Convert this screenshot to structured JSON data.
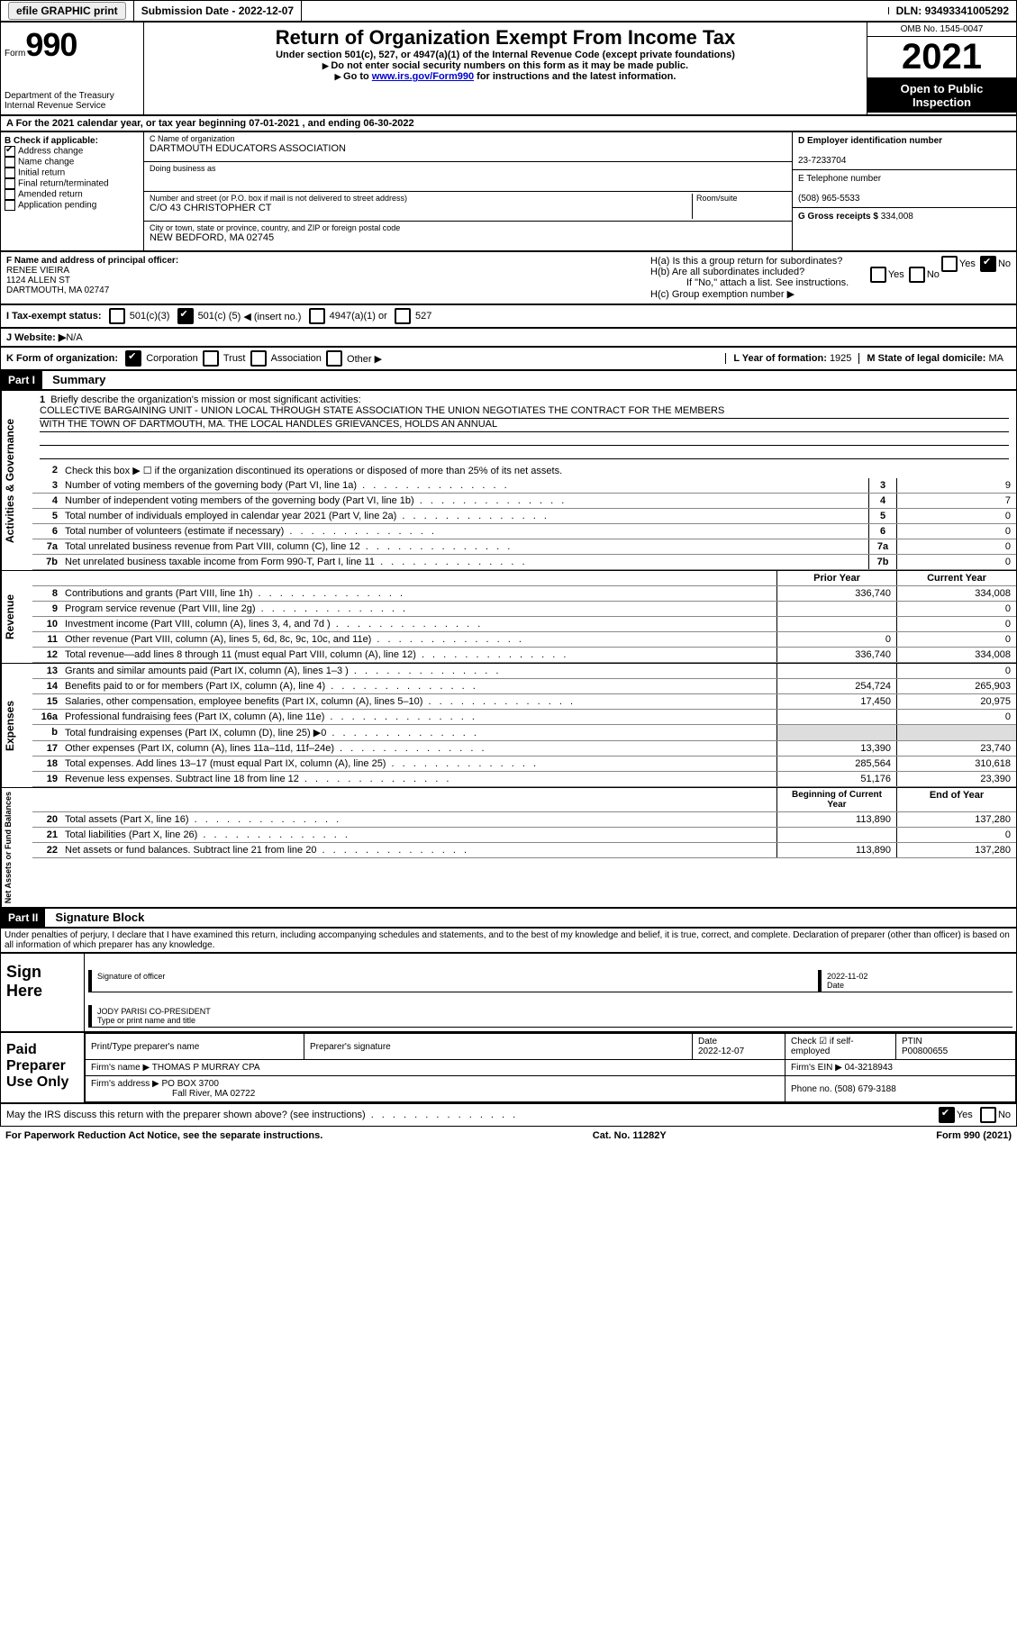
{
  "topbar": {
    "efile": "efile GRAPHIC print",
    "submission_label": "Submission Date - ",
    "submission_date": "2022-12-07",
    "dln_label": "DLN: ",
    "dln": "93493341005292"
  },
  "header": {
    "form_word": "Form",
    "form_num": "990",
    "title": "Return of Organization Exempt From Income Tax",
    "subtitle": "Under section 501(c), 527, or 4947(a)(1) of the Internal Revenue Code (except private foundations)",
    "warn": "Do not enter social security numbers on this form as it may be made public.",
    "goto_pre": "Go to ",
    "goto_link": "www.irs.gov/Form990",
    "goto_post": " for instructions and the latest information.",
    "dept": "Department of the Treasury",
    "irs": "Internal Revenue Service",
    "omb": "OMB No. 1545-0047",
    "year": "2021",
    "open": "Open to Public Inspection"
  },
  "rowA": {
    "pre": "A For the 2021 calendar year, or tax year beginning ",
    "begin": "07-01-2021",
    "mid": "  , and ending ",
    "end": "06-30-2022"
  },
  "colB": {
    "hdr": "B Check if applicable:",
    "items": [
      "Address change",
      "Name change",
      "Initial return",
      "Final return/terminated",
      "Amended return",
      "Application pending"
    ],
    "checked": [
      true,
      false,
      false,
      false,
      false,
      false
    ]
  },
  "colC": {
    "name_lbl": "C Name of organization",
    "name": "DARTMOUTH EDUCATORS ASSOCIATION",
    "dba_lbl": "Doing business as",
    "dba": "",
    "addr_lbl": "Number and street (or P.O. box if mail is not delivered to street address)",
    "room_lbl": "Room/suite",
    "addr": "C/O 43 CHRISTOPHER CT",
    "city_lbl": "City or town, state or province, country, and ZIP or foreign postal code",
    "city": "NEW BEDFORD, MA  02745"
  },
  "colD": {
    "ein_lbl": "D Employer identification number",
    "ein": "23-7233704",
    "tel_lbl": "E Telephone number",
    "tel": "(508) 965-5533",
    "gross_lbl": "G Gross receipts $ ",
    "gross": "334,008"
  },
  "colF": {
    "lbl": "F Name and address of principal officer:",
    "name": "RENEE VIEIRA",
    "addr1": "1124 ALLEN ST",
    "addr2": "DARTMOUTH, MA  02747"
  },
  "colH": {
    "ha": "H(a)  Is this a group return for subordinates?",
    "hb": "H(b)  Are all subordinates included?",
    "hb_note": "If \"No,\" attach a list. See instructions.",
    "hc": "H(c)  Group exemption number ▶",
    "yes": "Yes",
    "no": "No"
  },
  "rowI": {
    "lbl": "I  Tax-exempt status:",
    "opt1": "501(c)(3)",
    "opt2_pre": "501(c) ( ",
    "opt2_val": "5",
    "opt2_post": " ) ◀ (insert no.)",
    "opt3": "4947(a)(1) or",
    "opt4": "527"
  },
  "rowJ": {
    "lbl": "J  Website: ▶",
    "val": "  N/A"
  },
  "rowK": {
    "lbl": "K Form of organization:",
    "opts": [
      "Corporation",
      "Trust",
      "Association",
      "Other ▶"
    ],
    "year_lbl": "L Year of formation: ",
    "year": "1925",
    "state_lbl": "M State of legal domicile: ",
    "state": "MA"
  },
  "part1": {
    "hdr": "Part I",
    "title": "Summary",
    "side1": "Activities & Governance",
    "side2": "Revenue",
    "side3": "Expenses",
    "side4": "Net Assets or Fund Balances",
    "line1_lbl": "Briefly describe the organization's mission or most significant activities:",
    "mission1": "COLLECTIVE BARGAINING UNIT - UNION LOCAL THROUGH STATE ASSOCIATION THE UNION NEGOTIATES THE CONTRACT FOR THE MEMBERS",
    "mission2": "WITH THE TOWN OF DARTMOUTH, MA. THE LOCAL HANDLES GRIEVANCES, HOLDS AN ANNUAL",
    "line2": "Check this box ▶ ☐  if the organization discontinued its operations or disposed of more than 25% of its net assets.",
    "rows_gov": [
      {
        "n": "3",
        "t": "Number of voting members of the governing body (Part VI, line 1a)",
        "v": "9"
      },
      {
        "n": "4",
        "t": "Number of independent voting members of the governing body (Part VI, line 1b)",
        "v": "7"
      },
      {
        "n": "5",
        "t": "Total number of individuals employed in calendar year 2021 (Part V, line 2a)",
        "v": "0"
      },
      {
        "n": "6",
        "t": "Total number of volunteers (estimate if necessary)",
        "v": "0"
      },
      {
        "n": "7a",
        "t": "Total unrelated business revenue from Part VIII, column (C), line 12",
        "v": "0"
      },
      {
        "n": "7b",
        "t": "Net unrelated business taxable income from Form 990-T, Part I, line 11",
        "v": "0"
      }
    ],
    "col_hdr_prior": "Prior Year",
    "col_hdr_current": "Current Year",
    "rows_rev": [
      {
        "n": "8",
        "t": "Contributions and grants (Part VIII, line 1h)",
        "p": "336,740",
        "c": "334,008"
      },
      {
        "n": "9",
        "t": "Program service revenue (Part VIII, line 2g)",
        "p": "",
        "c": "0"
      },
      {
        "n": "10",
        "t": "Investment income (Part VIII, column (A), lines 3, 4, and 7d )",
        "p": "",
        "c": "0"
      },
      {
        "n": "11",
        "t": "Other revenue (Part VIII, column (A), lines 5, 6d, 8c, 9c, 10c, and 11e)",
        "p": "0",
        "c": "0"
      },
      {
        "n": "12",
        "t": "Total revenue—add lines 8 through 11 (must equal Part VIII, column (A), line 12)",
        "p": "336,740",
        "c": "334,008"
      }
    ],
    "rows_exp": [
      {
        "n": "13",
        "t": "Grants and similar amounts paid (Part IX, column (A), lines 1–3 )",
        "p": "",
        "c": "0"
      },
      {
        "n": "14",
        "t": "Benefits paid to or for members (Part IX, column (A), line 4)",
        "p": "254,724",
        "c": "265,903"
      },
      {
        "n": "15",
        "t": "Salaries, other compensation, employee benefits (Part IX, column (A), lines 5–10)",
        "p": "17,450",
        "c": "20,975"
      },
      {
        "n": "16a",
        "t": "Professional fundraising fees (Part IX, column (A), line 11e)",
        "p": "",
        "c": "0"
      },
      {
        "n": "b",
        "t": "Total fundraising expenses (Part IX, column (D), line 25) ▶0",
        "p": "shade",
        "c": "shade"
      },
      {
        "n": "17",
        "t": "Other expenses (Part IX, column (A), lines 11a–11d, 11f–24e)",
        "p": "13,390",
        "c": "23,740"
      },
      {
        "n": "18",
        "t": "Total expenses. Add lines 13–17 (must equal Part IX, column (A), line 25)",
        "p": "285,564",
        "c": "310,618"
      },
      {
        "n": "19",
        "t": "Revenue less expenses. Subtract line 18 from line 12",
        "p": "51,176",
        "c": "23,390"
      }
    ],
    "col_hdr_begin": "Beginning of Current Year",
    "col_hdr_end": "End of Year",
    "rows_net": [
      {
        "n": "20",
        "t": "Total assets (Part X, line 16)",
        "p": "113,890",
        "c": "137,280"
      },
      {
        "n": "21",
        "t": "Total liabilities (Part X, line 26)",
        "p": "",
        "c": "0"
      },
      {
        "n": "22",
        "t": "Net assets or fund balances. Subtract line 21 from line 20",
        "p": "113,890",
        "c": "137,280"
      }
    ]
  },
  "part2": {
    "hdr": "Part II",
    "title": "Signature Block",
    "penalty": "Under penalties of perjury, I declare that I have examined this return, including accompanying schedules and statements, and to the best of my knowledge and belief, it is true, correct, and complete. Declaration of preparer (other than officer) is based on all information of which preparer has any knowledge.",
    "sign_here": "Sign Here",
    "sig_officer": "Signature of officer",
    "sig_date_lbl": "Date",
    "sig_date": "2022-11-02",
    "sig_name": "JODY PARISI CO-PRESIDENT",
    "sig_name_lbl": "Type or print name and title",
    "paid": "Paid Preparer Use Only",
    "prep_name_lbl": "Print/Type preparer's name",
    "prep_sig_lbl": "Preparer's signature",
    "prep_date_lbl": "Date",
    "prep_date": "2022-12-07",
    "prep_check_lbl": "Check ☑ if self-employed",
    "ptin_lbl": "PTIN",
    "ptin": "P00800655",
    "firm_lbl": "Firm's name    ▶ ",
    "firm": "THOMAS P MURRAY CPA",
    "firm_ein_lbl": "Firm's EIN ▶ ",
    "firm_ein": "04-3218943",
    "firm_addr_lbl": "Firm's address ▶ ",
    "firm_addr1": "PO BOX 3700",
    "firm_addr2": "Fall River, MA  02722",
    "firm_phone_lbl": "Phone no. ",
    "firm_phone": "(508) 679-3188",
    "discuss": "May the IRS discuss this return with the preparer shown above? (see instructions)",
    "discuss_yes": "Yes",
    "discuss_no": "No"
  },
  "footer": {
    "pra": "For Paperwork Reduction Act Notice, see the separate instructions.",
    "cat": "Cat. No. 11282Y",
    "form": "Form 990 (2021)"
  }
}
